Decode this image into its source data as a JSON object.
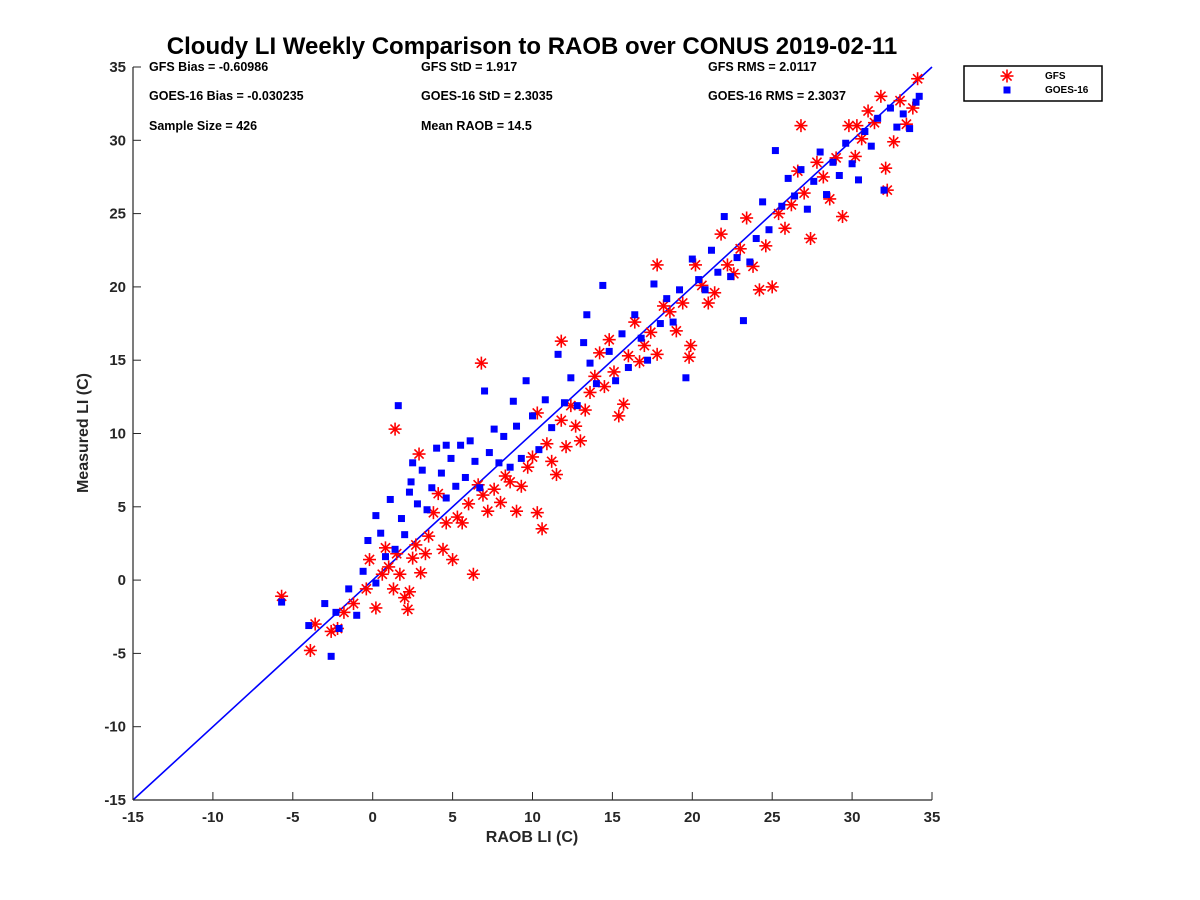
{
  "chart_data": {
    "type": "scatter",
    "title": "Cloudy LI Weekly Comparison to RAOB over CONUS 2019-02-11",
    "xlabel": "RAOB LI (C)",
    "ylabel": "Measured LI (C)",
    "xlim": [
      -15,
      35
    ],
    "ylim": [
      -15,
      35
    ],
    "xticks": [
      "-15",
      "-10",
      "-5",
      "0",
      "5",
      "10",
      "15",
      "20",
      "25",
      "30",
      "35"
    ],
    "yticks": [
      "-15",
      "-10",
      "-5",
      "0",
      "5",
      "10",
      "15",
      "20",
      "25",
      "30",
      "35"
    ],
    "grid": false,
    "legend_position": "outside-top-right",
    "reference_line": {
      "x": [
        -15,
        35
      ],
      "y": [
        -15,
        35
      ],
      "color": "#0000ff"
    },
    "stats": [
      [
        "GFS Bias = -0.60986",
        "GFS StD = 1.917",
        "GFS RMS = 2.0117"
      ],
      [
        "GOES-16 Bias = -0.030235",
        "GOES-16 StD = 2.3035",
        "GOES-16 RMS = 2.3037"
      ],
      [
        "Sample Size = 426",
        "Mean RAOB = 14.5",
        ""
      ]
    ],
    "series": [
      {
        "name": "GFS",
        "marker": "asterisk",
        "color": "#ff0000",
        "points": [
          [
            -5.7,
            -1.1
          ],
          [
            -3.9,
            -4.8
          ],
          [
            -3.6,
            -3.0
          ],
          [
            -2.6,
            -3.5
          ],
          [
            -2.2,
            -3.3
          ],
          [
            -1.8,
            -2.2
          ],
          [
            -1.2,
            -1.6
          ],
          [
            -0.4,
            -0.6
          ],
          [
            -0.2,
            1.4
          ],
          [
            0.2,
            -1.9
          ],
          [
            0.6,
            0.4
          ],
          [
            0.8,
            2.2
          ],
          [
            1.0,
            0.9
          ],
          [
            1.3,
            -0.6
          ],
          [
            1.5,
            1.8
          ],
          [
            1.7,
            0.4
          ],
          [
            2.0,
            -1.2
          ],
          [
            2.2,
            -2.0
          ],
          [
            2.3,
            -0.8
          ],
          [
            2.5,
            1.5
          ],
          [
            2.7,
            2.4
          ],
          [
            3.0,
            0.5
          ],
          [
            3.3,
            1.8
          ],
          [
            3.5,
            3.0
          ],
          [
            3.8,
            4.6
          ],
          [
            4.1,
            5.9
          ],
          [
            4.4,
            2.1
          ],
          [
            4.6,
            3.9
          ],
          [
            5.0,
            1.4
          ],
          [
            5.3,
            4.3
          ],
          [
            5.6,
            3.9
          ],
          [
            6.0,
            5.2
          ],
          [
            6.3,
            0.4
          ],
          [
            6.6,
            6.5
          ],
          [
            6.9,
            5.8
          ],
          [
            7.2,
            4.7
          ],
          [
            7.6,
            6.2
          ],
          [
            8.0,
            5.3
          ],
          [
            8.3,
            7.1
          ],
          [
            8.6,
            6.7
          ],
          [
            9.0,
            4.7
          ],
          [
            9.3,
            6.4
          ],
          [
            9.7,
            7.7
          ],
          [
            10.0,
            8.4
          ],
          [
            10.3,
            4.6
          ],
          [
            10.6,
            3.5
          ],
          [
            10.9,
            9.3
          ],
          [
            11.2,
            8.1
          ],
          [
            11.5,
            7.2
          ],
          [
            11.8,
            10.9
          ],
          [
            12.1,
            9.1
          ],
          [
            12.4,
            11.9
          ],
          [
            12.7,
            10.5
          ],
          [
            13.0,
            9.5
          ],
          [
            13.3,
            11.6
          ],
          [
            13.6,
            12.8
          ],
          [
            13.9,
            13.9
          ],
          [
            14.2,
            15.5
          ],
          [
            14.5,
            13.2
          ],
          [
            14.8,
            16.4
          ],
          [
            15.1,
            14.2
          ],
          [
            15.4,
            11.2
          ],
          [
            15.7,
            12.0
          ],
          [
            16.0,
            15.3
          ],
          [
            16.4,
            17.6
          ],
          [
            16.7,
            14.9
          ],
          [
            17.0,
            16.0
          ],
          [
            17.4,
            16.9
          ],
          [
            17.8,
            15.4
          ],
          [
            18.2,
            18.7
          ],
          [
            18.6,
            18.3
          ],
          [
            19.0,
            17.0
          ],
          [
            19.4,
            18.9
          ],
          [
            19.8,
            15.2
          ],
          [
            20.2,
            21.5
          ],
          [
            20.6,
            20.1
          ],
          [
            21.0,
            18.9
          ],
          [
            21.4,
            19.6
          ],
          [
            21.8,
            23.6
          ],
          [
            22.2,
            21.5
          ],
          [
            22.6,
            20.9
          ],
          [
            23.0,
            22.6
          ],
          [
            23.4,
            24.7
          ],
          [
            23.8,
            21.4
          ],
          [
            24.2,
            19.8
          ],
          [
            24.6,
            22.8
          ],
          [
            25.0,
            20.0
          ],
          [
            25.4,
            25.0
          ],
          [
            25.8,
            24.0
          ],
          [
            26.2,
            25.6
          ],
          [
            26.6,
            27.9
          ],
          [
            27.0,
            26.4
          ],
          [
            27.4,
            23.3
          ],
          [
            27.8,
            28.5
          ],
          [
            28.2,
            27.5
          ],
          [
            28.6,
            26.0
          ],
          [
            29.0,
            28.8
          ],
          [
            29.4,
            24.8
          ],
          [
            29.8,
            31.0
          ],
          [
            30.2,
            28.9
          ],
          [
            30.6,
            30.1
          ],
          [
            31.0,
            32.0
          ],
          [
            31.4,
            31.2
          ],
          [
            31.8,
            33.0
          ],
          [
            32.2,
            26.6
          ],
          [
            32.6,
            29.9
          ],
          [
            33.0,
            32.7
          ],
          [
            33.4,
            31.1
          ],
          [
            33.8,
            32.2
          ],
          [
            34.1,
            34.2
          ],
          [
            1.4,
            10.3
          ],
          [
            2.9,
            8.6
          ],
          [
            6.8,
            14.8
          ],
          [
            10.3,
            11.4
          ],
          [
            11.8,
            16.3
          ],
          [
            17.8,
            21.5
          ],
          [
            19.9,
            16.0
          ],
          [
            26.8,
            31.0
          ],
          [
            30.3,
            31.0
          ],
          [
            32.1,
            28.1
          ]
        ]
      },
      {
        "name": "GOES-16",
        "marker": "square",
        "color": "#0000ff",
        "points": [
          [
            -5.7,
            -1.5
          ],
          [
            -4.0,
            -3.1
          ],
          [
            -3.0,
            -1.6
          ],
          [
            -2.6,
            -5.2
          ],
          [
            -2.3,
            -2.2
          ],
          [
            -2.1,
            -3.3
          ],
          [
            -1.5,
            -0.6
          ],
          [
            -1.0,
            -2.4
          ],
          [
            -0.6,
            0.6
          ],
          [
            -0.3,
            2.7
          ],
          [
            0.2,
            -0.2
          ],
          [
            0.5,
            3.2
          ],
          [
            0.8,
            1.6
          ],
          [
            1.1,
            5.5
          ],
          [
            1.4,
            2.1
          ],
          [
            1.6,
            11.9
          ],
          [
            1.8,
            4.2
          ],
          [
            2.0,
            3.1
          ],
          [
            2.3,
            6.0
          ],
          [
            2.5,
            8.0
          ],
          [
            2.8,
            5.2
          ],
          [
            3.1,
            7.5
          ],
          [
            3.4,
            4.8
          ],
          [
            3.7,
            6.3
          ],
          [
            4.0,
            9.0
          ],
          [
            4.3,
            7.3
          ],
          [
            4.6,
            5.6
          ],
          [
            4.9,
            8.3
          ],
          [
            5.2,
            6.4
          ],
          [
            5.5,
            9.2
          ],
          [
            5.8,
            7.0
          ],
          [
            6.1,
            9.5
          ],
          [
            6.4,
            8.1
          ],
          [
            6.7,
            6.3
          ],
          [
            7.0,
            12.9
          ],
          [
            7.3,
            8.7
          ],
          [
            7.6,
            10.3
          ],
          [
            7.9,
            8.0
          ],
          [
            8.2,
            9.8
          ],
          [
            8.6,
            7.7
          ],
          [
            9.0,
            10.5
          ],
          [
            9.3,
            8.3
          ],
          [
            9.6,
            13.6
          ],
          [
            10.0,
            11.2
          ],
          [
            10.4,
            8.9
          ],
          [
            10.8,
            12.3
          ],
          [
            11.2,
            10.4
          ],
          [
            11.6,
            15.4
          ],
          [
            12.0,
            12.1
          ],
          [
            12.4,
            13.8
          ],
          [
            12.8,
            11.9
          ],
          [
            13.2,
            16.2
          ],
          [
            13.6,
            14.8
          ],
          [
            14.0,
            13.4
          ],
          [
            14.4,
            20.1
          ],
          [
            14.8,
            15.6
          ],
          [
            15.2,
            13.6
          ],
          [
            15.6,
            16.8
          ],
          [
            16.0,
            14.5
          ],
          [
            16.4,
            18.1
          ],
          [
            16.8,
            16.5
          ],
          [
            17.2,
            15.0
          ],
          [
            17.6,
            20.2
          ],
          [
            18.0,
            17.5
          ],
          [
            18.4,
            19.2
          ],
          [
            18.8,
            17.6
          ],
          [
            19.2,
            19.8
          ],
          [
            19.6,
            13.8
          ],
          [
            20.0,
            21.9
          ],
          [
            20.4,
            20.5
          ],
          [
            20.8,
            19.8
          ],
          [
            21.2,
            22.5
          ],
          [
            21.6,
            21.0
          ],
          [
            22.0,
            24.8
          ],
          [
            22.4,
            20.7
          ],
          [
            22.8,
            22.0
          ],
          [
            23.2,
            17.7
          ],
          [
            23.6,
            21.7
          ],
          [
            24.0,
            23.3
          ],
          [
            24.4,
            25.8
          ],
          [
            24.8,
            23.9
          ],
          [
            25.2,
            29.3
          ],
          [
            25.6,
            25.5
          ],
          [
            26.0,
            27.4
          ],
          [
            26.4,
            26.2
          ],
          [
            26.8,
            28.0
          ],
          [
            27.2,
            25.3
          ],
          [
            27.6,
            27.2
          ],
          [
            28.0,
            29.2
          ],
          [
            28.4,
            26.3
          ],
          [
            28.8,
            28.5
          ],
          [
            29.2,
            27.6
          ],
          [
            29.6,
            29.8
          ],
          [
            30.0,
            28.4
          ],
          [
            30.4,
            27.3
          ],
          [
            30.8,
            30.6
          ],
          [
            31.2,
            29.6
          ],
          [
            31.6,
            31.5
          ],
          [
            32.0,
            26.6
          ],
          [
            32.4,
            32.2
          ],
          [
            32.8,
            30.9
          ],
          [
            33.2,
            31.8
          ],
          [
            33.6,
            30.8
          ],
          [
            34.0,
            32.6
          ],
          [
            34.2,
            33.0
          ],
          [
            0.2,
            4.4
          ],
          [
            2.4,
            6.7
          ],
          [
            4.6,
            9.2
          ],
          [
            8.8,
            12.2
          ],
          [
            13.4,
            18.1
          ]
        ]
      }
    ]
  }
}
